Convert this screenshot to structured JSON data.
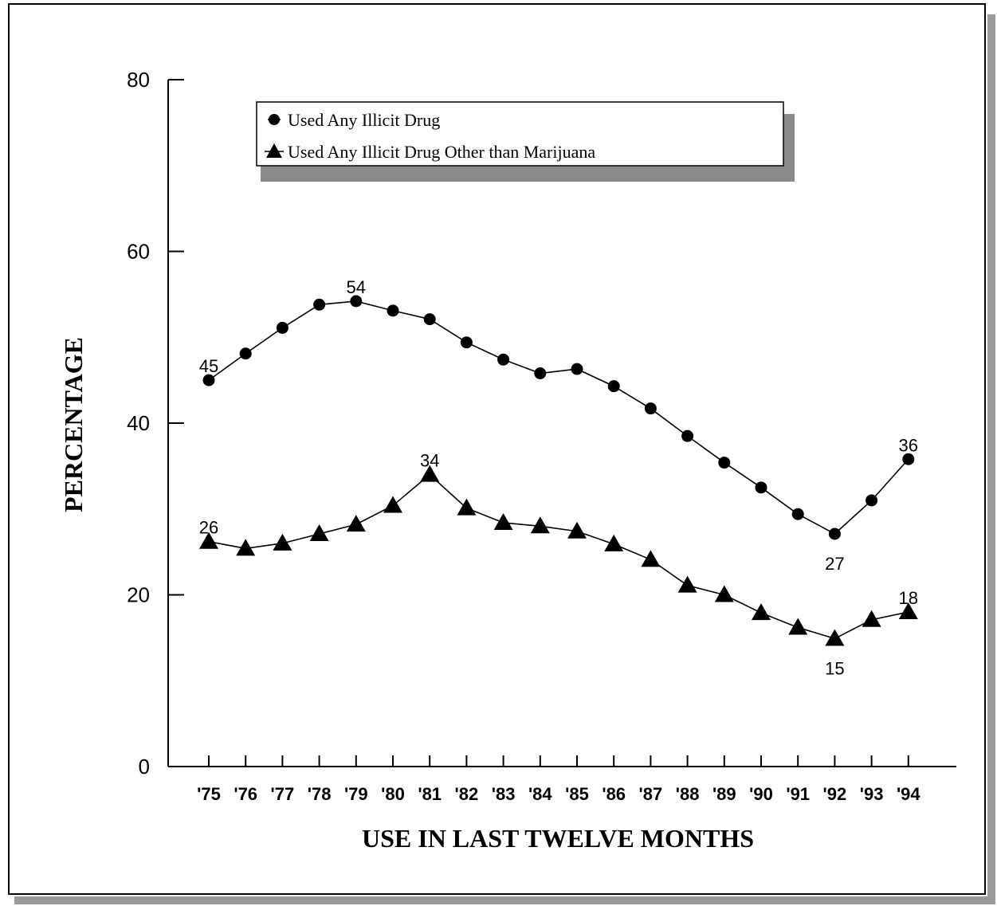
{
  "chart_data": {
    "type": "line",
    "xlabel": "USE IN LAST TWELVE MONTHS",
    "ylabel": "PERCENTAGE",
    "ylim": [
      0,
      80
    ],
    "yticks": [
      "0",
      "20",
      "40",
      "60",
      "80"
    ],
    "categories": [
      "'75",
      "'76",
      "'77",
      "'78",
      "'79",
      "'80",
      "'81",
      "'82",
      "'83",
      "'84",
      "'85",
      "'86",
      "'87",
      "'88",
      "'89",
      "'90",
      "'91",
      "'92",
      "'93",
      "'94"
    ],
    "legend_position": "top-left",
    "grid": false,
    "series": [
      {
        "name": "Used Any Illicit Drug",
        "marker": "circle",
        "values": [
          45.0,
          48.1,
          51.1,
          53.8,
          54.2,
          53.1,
          52.1,
          49.4,
          47.4,
          45.8,
          46.3,
          44.3,
          41.7,
          38.5,
          35.4,
          32.5,
          29.4,
          27.1,
          31.0,
          35.8
        ],
        "labels": [
          {
            "index": 0,
            "text": "45",
            "position": "above"
          },
          {
            "index": 4,
            "text": "54",
            "position": "above"
          },
          {
            "index": 17,
            "text": "27",
            "position": "below"
          },
          {
            "index": 19,
            "text": "36",
            "position": "above"
          }
        ]
      },
      {
        "name": "Used Any Illicit Drug Other than Marijuana",
        "marker": "triangle",
        "values": [
          26.2,
          25.4,
          26.0,
          27.1,
          28.2,
          30.4,
          34.0,
          30.1,
          28.4,
          28.0,
          27.4,
          25.9,
          24.1,
          21.1,
          20.0,
          17.9,
          16.2,
          14.9,
          17.1,
          18.0
        ],
        "labels": [
          {
            "index": 0,
            "text": "26",
            "position": "above"
          },
          {
            "index": 6,
            "text": "34",
            "position": "above"
          },
          {
            "index": 17,
            "text": "15",
            "position": "below"
          },
          {
            "index": 19,
            "text": "18",
            "position": "above"
          }
        ]
      }
    ]
  }
}
